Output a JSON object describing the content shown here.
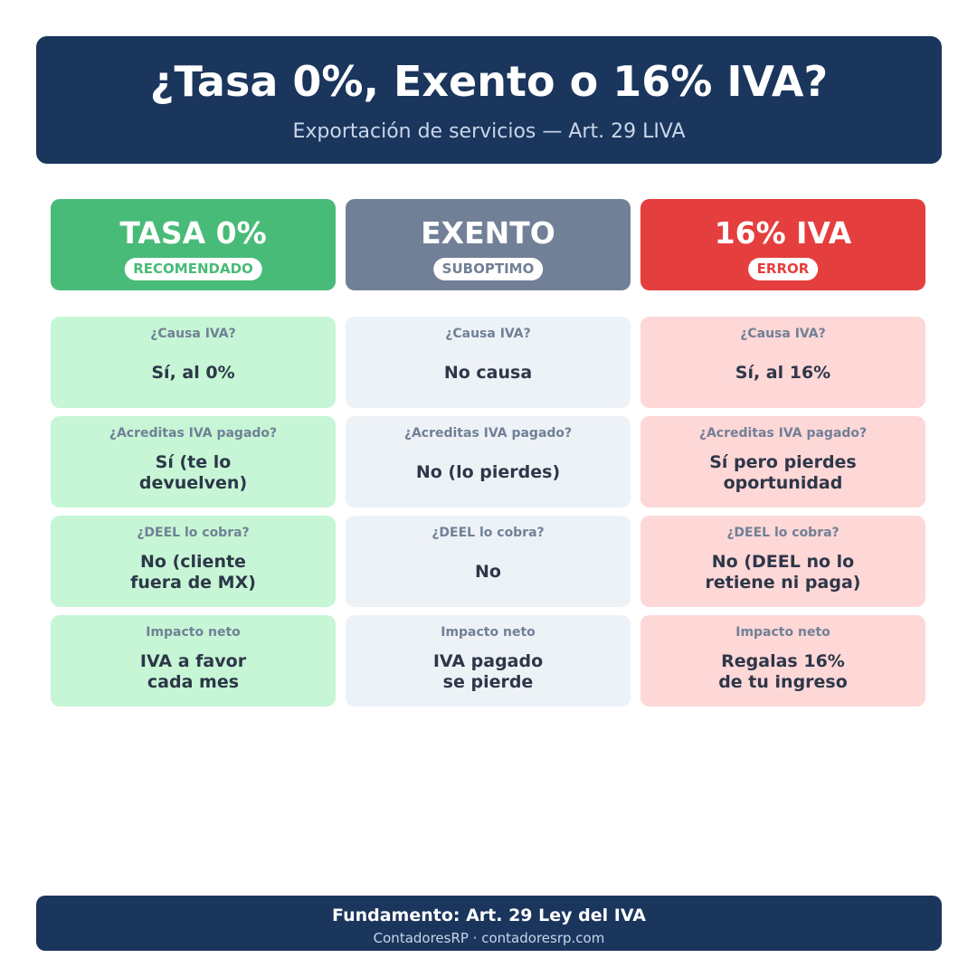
{
  "header": {
    "title": "¿Tasa 0%, Exento o 16% IVA?",
    "subtitle": "Exportación de servicios — Art. 29 LIVA"
  },
  "columns": [
    {
      "name": "TASA 0%",
      "badge": "RECOMENDADO",
      "color": "#48bb78",
      "cell_bg": "#c6f6d5",
      "rows": [
        {
          "question": "¿Causa IVA?",
          "answer": "Sí, al 0%"
        },
        {
          "question": "¿Acreditas IVA pagado?",
          "answer": "Sí (te lo\ndevuelven)"
        },
        {
          "question": "¿DEEL lo cobra?",
          "answer": "No (cliente\nfuera de MX)"
        },
        {
          "question": "Impacto neto",
          "answer": "IVA a favor\ncada mes"
        }
      ]
    },
    {
      "name": "EXENTO",
      "badge": "SUBOPTIMO",
      "color": "#718096",
      "cell_bg": "#edf2f7",
      "rows": [
        {
          "question": "¿Causa IVA?",
          "answer": "No causa"
        },
        {
          "question": "¿Acreditas IVA pagado?",
          "answer": "No (lo pierdes)"
        },
        {
          "question": "¿DEEL lo cobra?",
          "answer": "No"
        },
        {
          "question": "Impacto neto",
          "answer": "IVA pagado\nse pierde"
        }
      ]
    },
    {
      "name": "16% IVA",
      "badge": "ERROR",
      "color": "#e53e3e",
      "cell_bg": "#fed7d7",
      "rows": [
        {
          "question": "¿Causa IVA?",
          "answer": "Sí, al 16%"
        },
        {
          "question": "¿Acreditas IVA pagado?",
          "answer": "Sí pero pierdes\noportunidad"
        },
        {
          "question": "¿DEEL lo cobra?",
          "answer": "No (DEEL no lo\nretiene ni paga)"
        },
        {
          "question": "Impacto neto",
          "answer": "Regalas 16%\nde tu ingreso"
        }
      ]
    }
  ],
  "footer": {
    "basis": "Fundamento: Art. 29 Ley del IVA",
    "credit": "ContadoresRP · contadoresrp.com"
  }
}
